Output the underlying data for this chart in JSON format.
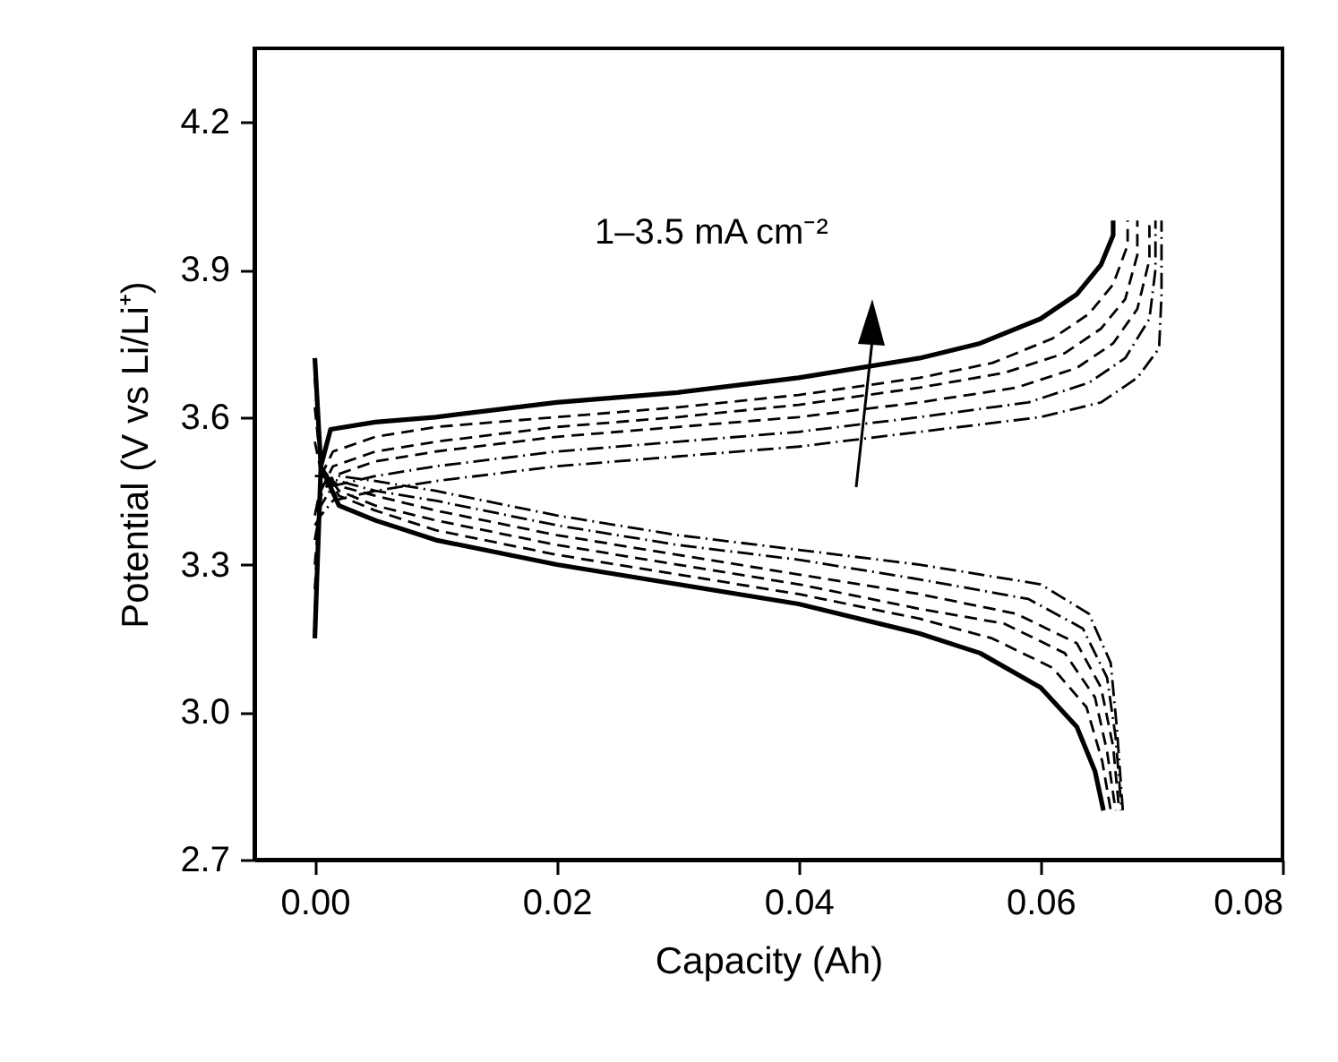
{
  "chart_data": {
    "type": "line",
    "xlabel": "Capacity (Ah)",
    "ylabel": "Potential (V vs Li/Li⁺)",
    "annotations": [
      "1–3.5 mA cm⁻²"
    ],
    "xlim": [
      -0.005,
      0.08
    ],
    "ylim": [
      2.7,
      4.35
    ],
    "xticks": [
      {
        "value": 0,
        "label": "0.00"
      },
      {
        "value": 0.02,
        "label": "0.02"
      },
      {
        "value": 0.04,
        "label": "0.04"
      },
      {
        "value": 0.06,
        "label": "0.06"
      },
      {
        "value": 0.08,
        "label": "0.08"
      }
    ],
    "yticks": [
      {
        "value": 2.7,
        "label": "2.7"
      },
      {
        "value": 3,
        "label": "3.0"
      },
      {
        "value": 3.3,
        "label": "3.3"
      },
      {
        "value": 3.6,
        "label": "3.6"
      },
      {
        "value": 3.9,
        "label": "3.9"
      },
      {
        "value": 4.2,
        "label": "4.2"
      }
    ],
    "grid": false,
    "marker": "none",
    "series": [
      {
        "color": "#000000",
        "line_style": "solid",
        "x": [
          0,
          0.0005,
          0.0013,
          0.005,
          0.01,
          0.02,
          0.03,
          0.04,
          0.05,
          0.055,
          0.06,
          0.063,
          0.065,
          0.066,
          0.066
        ],
        "values": [
          3.15,
          3.5,
          3.575,
          3.59,
          3.6,
          3.63,
          3.65,
          3.68,
          3.72,
          3.75,
          3.8,
          3.85,
          3.91,
          3.97,
          4.0
        ]
      },
      {
        "color": "#000000",
        "line_style": "dashed",
        "x": [
          0,
          0.0005,
          0.0015,
          0.005,
          0.01,
          0.02,
          0.03,
          0.04,
          0.05,
          0.056,
          0.061,
          0.064,
          0.066,
          0.0672,
          0.0672
        ],
        "values": [
          3.2,
          3.48,
          3.53,
          3.56,
          3.58,
          3.6,
          3.62,
          3.645,
          3.68,
          3.71,
          3.76,
          3.81,
          3.87,
          3.95,
          4.0
        ]
      },
      {
        "color": "#000000",
        "line_style": "dashed",
        "x": [
          0,
          0.0005,
          0.0015,
          0.005,
          0.01,
          0.02,
          0.03,
          0.04,
          0.05,
          0.057,
          0.062,
          0.065,
          0.067,
          0.068,
          0.068
        ],
        "values": [
          3.25,
          3.45,
          3.5,
          3.53,
          3.55,
          3.58,
          3.6,
          3.625,
          3.66,
          3.69,
          3.73,
          3.78,
          3.84,
          3.93,
          4.0
        ]
      },
      {
        "color": "#000000",
        "line_style": "dashed",
        "x": [
          0,
          0.0005,
          0.0015,
          0.005,
          0.01,
          0.02,
          0.03,
          0.04,
          0.05,
          0.058,
          0.063,
          0.066,
          0.068,
          0.069,
          0.069
        ],
        "values": [
          3.3,
          3.44,
          3.48,
          3.51,
          3.53,
          3.56,
          3.58,
          3.6,
          3.63,
          3.66,
          3.7,
          3.75,
          3.82,
          3.92,
          4.0
        ]
      },
      {
        "color": "#000000",
        "line_style": "dashdot",
        "x": [
          0,
          0.0005,
          0.0015,
          0.005,
          0.01,
          0.02,
          0.03,
          0.04,
          0.05,
          0.059,
          0.064,
          0.067,
          0.069,
          0.0695,
          0.0695
        ],
        "values": [
          3.35,
          3.42,
          3.46,
          3.48,
          3.5,
          3.53,
          3.55,
          3.57,
          3.6,
          3.63,
          3.67,
          3.72,
          3.8,
          3.9,
          4.0
        ]
      },
      {
        "color": "#000000",
        "line_style": "dashdot",
        "x": [
          0,
          0.0005,
          0.0015,
          0.005,
          0.01,
          0.02,
          0.03,
          0.04,
          0.05,
          0.06,
          0.065,
          0.068,
          0.0698,
          0.07,
          0.07
        ],
        "values": [
          3.38,
          3.4,
          3.43,
          3.45,
          3.47,
          3.5,
          3.52,
          3.54,
          3.57,
          3.6,
          3.63,
          3.68,
          3.74,
          3.85,
          4.0
        ]
      },
      {
        "color": "#000000",
        "line_style": "solid",
        "x": [
          0,
          0.0005,
          0.002,
          0.005,
          0.01,
          0.02,
          0.03,
          0.04,
          0.05,
          0.055,
          0.06,
          0.063,
          0.0645,
          0.0652
        ],
        "values": [
          3.72,
          3.5,
          3.42,
          3.39,
          3.35,
          3.3,
          3.26,
          3.22,
          3.16,
          3.12,
          3.05,
          2.97,
          2.88,
          2.8
        ]
      },
      {
        "color": "#000000",
        "line_style": "dashed",
        "x": [
          0,
          0.0005,
          0.002,
          0.005,
          0.01,
          0.02,
          0.03,
          0.04,
          0.05,
          0.056,
          0.061,
          0.0638,
          0.0651,
          0.0658
        ],
        "values": [
          3.68,
          3.5,
          3.44,
          3.41,
          3.37,
          3.32,
          3.28,
          3.24,
          3.19,
          3.15,
          3.09,
          3.01,
          2.9,
          2.8
        ]
      },
      {
        "color": "#000000",
        "line_style": "dashed",
        "x": [
          0,
          0.0005,
          0.002,
          0.005,
          0.01,
          0.02,
          0.03,
          0.04,
          0.05,
          0.057,
          0.062,
          0.0645,
          0.0655,
          0.0662
        ],
        "values": [
          3.62,
          3.5,
          3.45,
          3.42,
          3.39,
          3.34,
          3.3,
          3.26,
          3.21,
          3.18,
          3.12,
          3.03,
          2.92,
          2.8
        ]
      },
      {
        "color": "#000000",
        "line_style": "dashed",
        "x": [
          0,
          0.0005,
          0.002,
          0.005,
          0.01,
          0.02,
          0.03,
          0.04,
          0.05,
          0.058,
          0.063,
          0.065,
          0.066,
          0.0665
        ],
        "values": [
          3.55,
          3.49,
          3.46,
          3.44,
          3.41,
          3.36,
          3.32,
          3.28,
          3.24,
          3.2,
          3.14,
          3.05,
          2.93,
          2.8
        ]
      },
      {
        "color": "#000000",
        "line_style": "dashdot",
        "x": [
          0,
          0.0005,
          0.002,
          0.005,
          0.01,
          0.02,
          0.03,
          0.04,
          0.05,
          0.059,
          0.0635,
          0.0655,
          0.0662,
          0.0667
        ],
        "values": [
          3.48,
          3.48,
          3.47,
          3.45,
          3.43,
          3.38,
          3.34,
          3.31,
          3.27,
          3.23,
          3.17,
          3.07,
          2.95,
          2.8
        ]
      },
      {
        "color": "#000000",
        "line_style": "dashdot",
        "x": [
          0,
          0.0005,
          0.002,
          0.005,
          0.01,
          0.02,
          0.03,
          0.04,
          0.05,
          0.06,
          0.064,
          0.0658,
          0.0663,
          0.0668
        ],
        "values": [
          3.4,
          3.46,
          3.48,
          3.47,
          3.45,
          3.4,
          3.36,
          3.33,
          3.3,
          3.26,
          3.2,
          3.1,
          2.97,
          2.8
        ]
      }
    ]
  }
}
